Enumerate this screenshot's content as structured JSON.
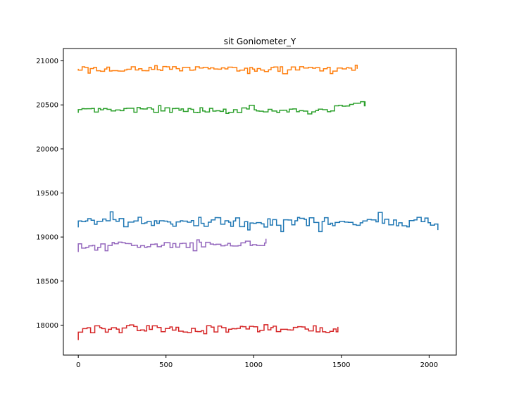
{
  "chart_data": {
    "type": "line",
    "title": "sit Goniometer_Y",
    "xlabel": "",
    "ylabel": "",
    "xlim": [
      -85,
      2155
    ],
    "ylim": [
      17660,
      21140
    ],
    "x_ticks": [
      0,
      500,
      1000,
      1500,
      2000
    ],
    "y_ticks": [
      18000,
      18500,
      19000,
      19500,
      20000,
      20500,
      21000
    ],
    "x_tick_labels": [
      "0",
      "500",
      "1000",
      "1500",
      "2000"
    ],
    "y_tick_labels": [
      "18000",
      "18500",
      "19000",
      "19500",
      "20000",
      "20500",
      "21000"
    ],
    "grid": false,
    "legend": "none",
    "step_style": true,
    "series": [
      {
        "color": "#1f77b4",
        "length": 2050,
        "start": 19110,
        "base": 19170,
        "amp": 70,
        "period": 20,
        "end": 19080,
        "seed": 11
      },
      {
        "color": "#ff7f0e",
        "length": 1590,
        "start": 20910,
        "base": 20910,
        "amp": 35,
        "period": 20,
        "end": 20910,
        "seed": 22
      },
      {
        "color": "#2ca02c",
        "length": 1635,
        "start": 20410,
        "base": 20440,
        "amp": 35,
        "period": 20,
        "end": 20540,
        "tail_from": 1480,
        "tail_base": 20510,
        "seed": 33
      },
      {
        "color": "#d62728",
        "length": 1480,
        "start": 17830,
        "base": 17960,
        "amp": 60,
        "period": 20,
        "end": 17980,
        "seed": 44
      },
      {
        "color": "#9467bd",
        "length": 1070,
        "start": 18830,
        "base": 18910,
        "amp": 40,
        "period": 20,
        "end": 18980,
        "seed": 55
      }
    ]
  }
}
